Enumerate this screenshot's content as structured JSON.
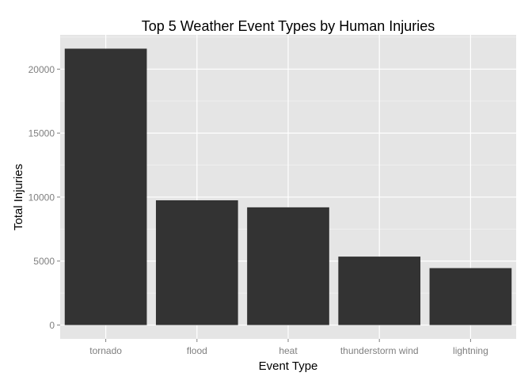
{
  "chart_data": {
    "type": "bar",
    "title": "Top 5 Weather Event Types by Human Injuries",
    "xlabel": "Event Type",
    "ylabel": "Total Injuries",
    "categories": [
      "tornado",
      "flood",
      "heat",
      "thunderstorm wind",
      "lightning"
    ],
    "values": [
      21600,
      9750,
      9200,
      5350,
      4450
    ],
    "ylim": [
      -1080,
      22680
    ],
    "yticks": [
      0,
      5000,
      10000,
      15000,
      20000
    ],
    "ytick_labels": [
      "0",
      "5000",
      "10000",
      "15000",
      "20000"
    ],
    "grid": true,
    "legend": "none",
    "colors": {
      "bar": "#333333",
      "panel": "#e5e5e5",
      "grid_major": "#ffffff",
      "grid_minor": "#f2f2f2",
      "tick_text": "#7f7f7f",
      "title_text": "#000000"
    }
  }
}
